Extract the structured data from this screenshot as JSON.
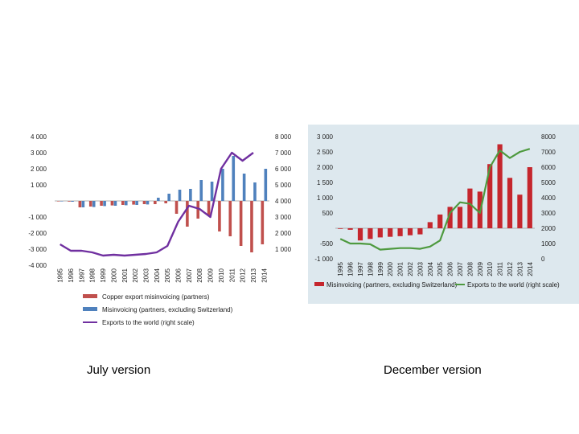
{
  "captions": {
    "left": "July version",
    "right": "December version"
  },
  "colors": {
    "july_red": "#c0504d",
    "july_blue": "#4f81bd",
    "july_line": "#7030a0",
    "dec_red": "#c5262d",
    "dec_line": "#4e9a3f",
    "dec_background": "#dde8ee"
  },
  "chart_data": [
    {
      "type": "bar",
      "panel": "July version",
      "categories": [
        "1995",
        "1996",
        "1997",
        "1998",
        "1999",
        "2000",
        "2001",
        "2002",
        "2003",
        "2004",
        "2005",
        "2006",
        "2007",
        "2008",
        "2009",
        "2010",
        "2011",
        "2012",
        "2013",
        "2014"
      ],
      "y_left_ticks": [
        "4 000",
        "3 000",
        "2 000",
        "1 000",
        "-1 000",
        "-2 000",
        "-3 000",
        "-4 000"
      ],
      "y_left_tick_values": [
        4000,
        3000,
        2000,
        1000,
        -1000,
        -2000,
        -3000,
        -4000
      ],
      "y_right_ticks": [
        "8 000",
        "7 000",
        "6 000",
        "5 000",
        "4 000",
        "3 000",
        "2 000",
        "1 000"
      ],
      "y_right_tick_values": [
        8000,
        7000,
        6000,
        5000,
        4000,
        3000,
        2000,
        1000
      ],
      "ylim_left": [
        -4000,
        4000
      ],
      "ylim_right": [
        0,
        8000
      ],
      "series": [
        {
          "name": "Copper export misinvoicing (partners)",
          "kind": "bar",
          "axis": "left",
          "color": "#c0504d",
          "values": [
            -20,
            -40,
            -400,
            -350,
            -300,
            -280,
            -250,
            -230,
            -200,
            -200,
            -150,
            -800,
            -1600,
            -1100,
            -900,
            -1900,
            -2200,
            -2800,
            -3200,
            -2700
          ]
        },
        {
          "name": "Misinvoicing (partners, excluding Switzerland)",
          "kind": "bar",
          "axis": "left",
          "color": "#4f81bd",
          "values": [
            -20,
            -50,
            -400,
            -380,
            -320,
            -300,
            -270,
            -250,
            -220,
            200,
            450,
            700,
            750,
            1300,
            1200,
            2000,
            2800,
            1700,
            1150,
            2000
          ]
        },
        {
          "name": "Exports to the world (right scale)",
          "kind": "line",
          "axis": "right",
          "color": "#7030a0",
          "values": [
            1300,
            900,
            900,
            800,
            600,
            650,
            600,
            650,
            700,
            800,
            1200,
            2700,
            3700,
            3500,
            3000,
            6000,
            7000,
            6500,
            7000,
            null
          ]
        }
      ]
    },
    {
      "type": "bar",
      "panel": "December version",
      "categories": [
        "1995",
        "1996",
        "1997",
        "1998",
        "1999",
        "2000",
        "2001",
        "2002",
        "2003",
        "2004",
        "2005",
        "2006",
        "2007",
        "2008",
        "2009",
        "2010",
        "2011",
        "2012",
        "2013",
        "2014"
      ],
      "y_left_ticks": [
        "3 000",
        "2 500",
        "2 000",
        "1 500",
        "1 000",
        "500",
        "-500",
        "-1 000"
      ],
      "y_left_tick_values": [
        3000,
        2500,
        2000,
        1500,
        1000,
        500,
        -500,
        -1000
      ],
      "y_right_ticks": [
        "8000",
        "7000",
        "6000",
        "5000",
        "4000",
        "3000",
        "2000",
        "1000",
        "0"
      ],
      "y_right_tick_values": [
        8000,
        7000,
        6000,
        5000,
        4000,
        3000,
        2000,
        1000,
        0
      ],
      "ylim_left": [
        -1000,
        3000
      ],
      "ylim_right": [
        0,
        8000
      ],
      "series": [
        {
          "name": "Misinvoicing (partners, excluding Switzerland)",
          "kind": "bar",
          "axis": "left",
          "color": "#c5262d",
          "values": [
            -20,
            -50,
            -400,
            -350,
            -300,
            -280,
            -260,
            -230,
            -200,
            200,
            450,
            700,
            700,
            1300,
            1200,
            2100,
            2750,
            1650,
            1100,
            2000
          ]
        },
        {
          "name": "Exports to the world (right scale)",
          "kind": "line",
          "axis": "right",
          "color": "#4e9a3f",
          "values": [
            1300,
            1000,
            1000,
            950,
            600,
            650,
            700,
            700,
            650,
            800,
            1200,
            3000,
            3700,
            3600,
            3000,
            6000,
            7100,
            6600,
            7000,
            7200
          ]
        }
      ]
    }
  ]
}
